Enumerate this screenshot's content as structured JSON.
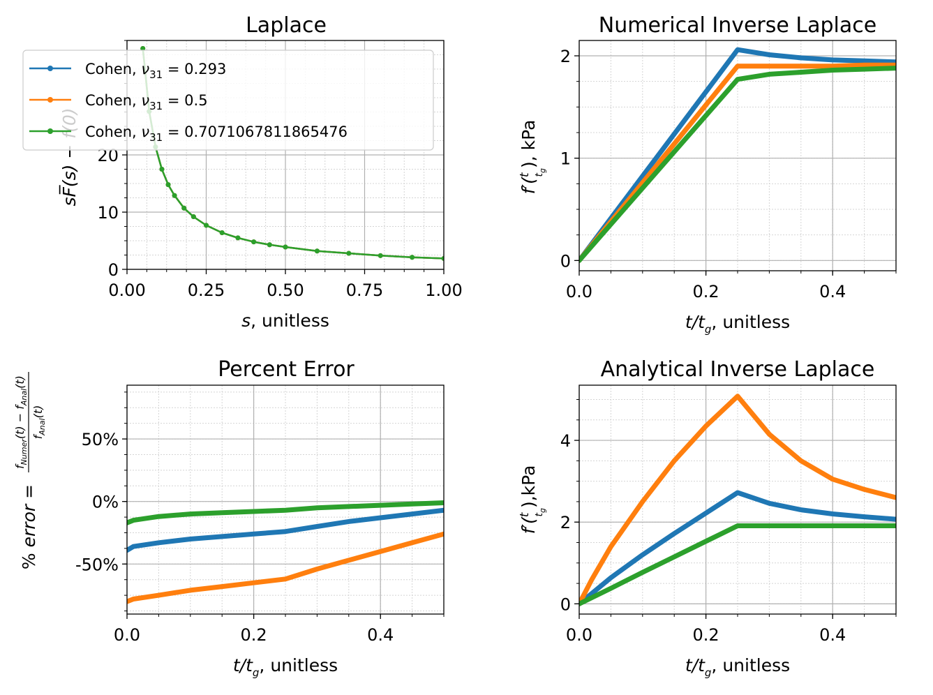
{
  "colors": {
    "blue": "#1f77b4",
    "orange": "#ff7f0e",
    "green": "#2ca02c",
    "grid_major": "#b0b0b0",
    "grid_minor": "#d4d4d4"
  },
  "chart_data": [
    {
      "id": "laplace",
      "type": "line",
      "title": "Laplace",
      "xlabel_var": "s",
      "xlabel_rest": ", unitless",
      "ylabel": "sF̅(s) − f(0)",
      "xlim": [
        0,
        1.0
      ],
      "ylim": [
        0,
        40
      ],
      "xticks": [
        0,
        0.25,
        0.5,
        0.75,
        1.0
      ],
      "xtick_labels": [
        "0.00",
        "0.25",
        "0.50",
        "0.75",
        "1.00"
      ],
      "yticks": [
        0,
        10,
        20
      ],
      "ytick_labels": [
        "0",
        "10",
        "20"
      ],
      "legend": {
        "position": "top-left",
        "entries": [
          {
            "prefix": "Cohen, ",
            "sym": "ν",
            "sub": "31",
            "suffix": " = 0.293",
            "color": "#1f77b4"
          },
          {
            "prefix": "Cohen, ",
            "sym": "ν",
            "sub": "31",
            "suffix": " = 0.5",
            "color": "#ff7f0e"
          },
          {
            "prefix": "Cohen, ",
            "sym": "ν",
            "sub": "31",
            "suffix": " = 0.7071067811865476",
            "color": "#2ca02c"
          }
        ]
      },
      "series": [
        {
          "name": "Cohen, ν31 = 0.293",
          "color": "#1f77b4",
          "x": [
            0.05,
            0.07,
            0.09,
            0.11,
            0.13,
            0.15,
            0.18,
            0.21,
            0.25,
            0.3,
            0.35,
            0.4,
            0.45,
            0.5,
            0.6,
            0.7,
            0.8,
            0.9,
            1.0
          ],
          "y": [
            38.6,
            27.6,
            21.4,
            17.5,
            14.8,
            12.9,
            10.7,
            9.2,
            7.7,
            6.4,
            5.5,
            4.8,
            4.3,
            3.9,
            3.2,
            2.8,
            2.4,
            2.1,
            1.9
          ]
        },
        {
          "name": "Cohen, ν31 = 0.5",
          "color": "#ff7f0e",
          "x": [
            0.05,
            0.07,
            0.09,
            0.11,
            0.13,
            0.15,
            0.18,
            0.21,
            0.25,
            0.3,
            0.35,
            0.4,
            0.45,
            0.5,
            0.6,
            0.7,
            0.8,
            0.9,
            1.0
          ],
          "y": [
            38.6,
            27.6,
            21.4,
            17.5,
            14.8,
            12.9,
            10.7,
            9.2,
            7.7,
            6.4,
            5.5,
            4.8,
            4.3,
            3.9,
            3.2,
            2.8,
            2.4,
            2.1,
            1.9
          ]
        },
        {
          "name": "Cohen, ν31 = 0.7071067811865476",
          "color": "#2ca02c",
          "x": [
            0.05,
            0.07,
            0.09,
            0.11,
            0.13,
            0.15,
            0.18,
            0.21,
            0.25,
            0.3,
            0.35,
            0.4,
            0.45,
            0.5,
            0.6,
            0.7,
            0.8,
            0.9,
            1.0
          ],
          "y": [
            38.6,
            27.6,
            21.4,
            17.5,
            14.8,
            12.9,
            10.7,
            9.2,
            7.7,
            6.4,
            5.5,
            4.8,
            4.3,
            3.9,
            3.2,
            2.8,
            2.4,
            2.1,
            1.9
          ]
        }
      ]
    },
    {
      "id": "numerical",
      "type": "line",
      "title": "Numerical Inverse Laplace",
      "xlabel_var": "t/t",
      "xlabel_sub": "g",
      "xlabel_rest": ", unitless",
      "ylabel": "f′(t/t_g), kPa",
      "xlim": [
        0,
        0.5
      ],
      "ylim": [
        -0.1,
        2.15
      ],
      "xticks": [
        0,
        0.2,
        0.4
      ],
      "xtick_labels": [
        "0.0",
        "0.2",
        "0.4"
      ],
      "yticks": [
        0,
        1,
        2
      ],
      "ytick_labels": [
        "0",
        "1",
        "2"
      ],
      "series": [
        {
          "name": "ν31 = 0.293",
          "color": "#1f77b4",
          "x": [
            0,
            0.25,
            0.3,
            0.35,
            0.4,
            0.45,
            0.5
          ],
          "y": [
            0,
            2.06,
            2.01,
            1.98,
            1.96,
            1.95,
            1.94
          ]
        },
        {
          "name": "ν31 = 0.5",
          "color": "#ff7f0e",
          "x": [
            0,
            0.25,
            0.3,
            0.35,
            0.4,
            0.45,
            0.5
          ],
          "y": [
            0,
            1.9,
            1.9,
            1.9,
            1.9,
            1.91,
            1.91
          ]
        },
        {
          "name": "ν31 = 0.7071067811865476",
          "color": "#2ca02c",
          "x": [
            0,
            0.25,
            0.3,
            0.35,
            0.4,
            0.45,
            0.5
          ],
          "y": [
            0,
            1.77,
            1.82,
            1.84,
            1.86,
            1.87,
            1.88
          ]
        }
      ]
    },
    {
      "id": "percent_error",
      "type": "line",
      "title": "Percent Error",
      "xlabel_var": "t/t",
      "xlabel_sub": "g",
      "xlabel_rest": ", unitless",
      "ylabel": "% error = (f_Numer(t) − f_Anal(t)) / f_Anal(t)",
      "xlim": [
        0,
        0.5
      ],
      "ylim": [
        -0.9,
        0.93
      ],
      "xticks": [
        0,
        0.2,
        0.4
      ],
      "xtick_labels": [
        "0.0",
        "0.2",
        "0.4"
      ],
      "yticks": [
        -0.5,
        0,
        0.5
      ],
      "ytick_labels": [
        "-50%",
        "0%",
        "50%"
      ],
      "series": [
        {
          "name": "ν31 = 0.293",
          "color": "#1f77b4",
          "x": [
            0,
            0.01,
            0.05,
            0.1,
            0.15,
            0.2,
            0.25,
            0.3,
            0.35,
            0.4,
            0.45,
            0.5
          ],
          "y": [
            -0.39,
            -0.36,
            -0.33,
            -0.3,
            -0.28,
            -0.26,
            -0.24,
            -0.2,
            -0.16,
            -0.13,
            -0.1,
            -0.07
          ]
        },
        {
          "name": "ν31 = 0.5",
          "color": "#ff7f0e",
          "x": [
            0,
            0.01,
            0.05,
            0.1,
            0.15,
            0.2,
            0.25,
            0.3,
            0.35,
            0.4,
            0.45,
            0.5
          ],
          "y": [
            -0.8,
            -0.78,
            -0.75,
            -0.71,
            -0.68,
            -0.65,
            -0.62,
            -0.54,
            -0.47,
            -0.4,
            -0.33,
            -0.26
          ]
        },
        {
          "name": "ν31 = 0.7071067811865476",
          "color": "#2ca02c",
          "x": [
            0,
            0.01,
            0.05,
            0.1,
            0.15,
            0.2,
            0.25,
            0.3,
            0.35,
            0.4,
            0.45,
            0.5
          ],
          "y": [
            -0.17,
            -0.15,
            -0.12,
            -0.1,
            -0.09,
            -0.08,
            -0.07,
            -0.05,
            -0.04,
            -0.03,
            -0.02,
            -0.01
          ]
        }
      ]
    },
    {
      "id": "analytical",
      "type": "line",
      "title": "Analytical Inverse Laplace",
      "xlabel_var": "t/t",
      "xlabel_sub": "g",
      "xlabel_rest": ", unitless",
      "ylabel": "f′(t/t_g),kPa",
      "xlim": [
        0,
        0.5
      ],
      "ylim": [
        -0.25,
        5.35
      ],
      "xticks": [
        0,
        0.2,
        0.4
      ],
      "xtick_labels": [
        "0.0",
        "0.2",
        "0.4"
      ],
      "yticks": [
        0,
        2,
        4
      ],
      "ytick_labels": [
        "0",
        "2",
        "4"
      ],
      "series": [
        {
          "name": "ν31 = 0.293",
          "color": "#1f77b4",
          "x": [
            0,
            0.05,
            0.1,
            0.15,
            0.2,
            0.25,
            0.3,
            0.35,
            0.4,
            0.45,
            0.5
          ],
          "y": [
            0,
            0.64,
            1.2,
            1.72,
            2.22,
            2.72,
            2.46,
            2.3,
            2.2,
            2.13,
            2.07
          ]
        },
        {
          "name": "ν31 = 0.5",
          "color": "#ff7f0e",
          "x": [
            0,
            0.02,
            0.05,
            0.1,
            0.15,
            0.2,
            0.25,
            0.3,
            0.35,
            0.4,
            0.45,
            0.5
          ],
          "y": [
            0,
            0.6,
            1.4,
            2.5,
            3.5,
            4.35,
            5.08,
            4.15,
            3.5,
            3.05,
            2.8,
            2.6
          ]
        },
        {
          "name": "ν31 = 0.7071067811865476",
          "color": "#2ca02c",
          "x": [
            0,
            0.05,
            0.1,
            0.15,
            0.2,
            0.25,
            0.3,
            0.35,
            0.4,
            0.45,
            0.5
          ],
          "y": [
            0,
            0.38,
            0.77,
            1.15,
            1.53,
            1.91,
            1.91,
            1.91,
            1.91,
            1.91,
            1.91
          ]
        }
      ]
    }
  ]
}
